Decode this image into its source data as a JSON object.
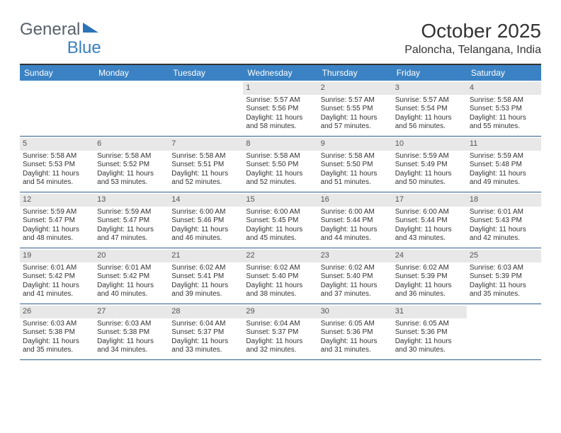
{
  "logo": {
    "part1": "General",
    "part2": "Blue"
  },
  "header": {
    "month": "October 2025",
    "location": "Paloncha, Telangana, India"
  },
  "colors": {
    "header_bar": "#3b82c4",
    "header_text": "#ffffff",
    "daynum_bg": "#e8e8e8",
    "week_border": "#2f5d8a",
    "page_border_top": "#333333",
    "logo_blue": "#3a7fbf",
    "logo_gray": "#58606a"
  },
  "typography": {
    "title_fontsize": 28,
    "location_fontsize": 16,
    "header_fontsize": 12,
    "cell_fontsize": 10
  },
  "day_names": [
    "Sunday",
    "Monday",
    "Tuesday",
    "Wednesday",
    "Thursday",
    "Friday",
    "Saturday"
  ],
  "weeks": [
    [
      {
        "empty": true
      },
      {
        "empty": true
      },
      {
        "empty": true
      },
      {
        "n": "1",
        "sr": "Sunrise: 5:57 AM",
        "ss": "Sunset: 5:56 PM",
        "d1": "Daylight: 11 hours",
        "d2": "and 58 minutes."
      },
      {
        "n": "2",
        "sr": "Sunrise: 5:57 AM",
        "ss": "Sunset: 5:55 PM",
        "d1": "Daylight: 11 hours",
        "d2": "and 57 minutes."
      },
      {
        "n": "3",
        "sr": "Sunrise: 5:57 AM",
        "ss": "Sunset: 5:54 PM",
        "d1": "Daylight: 11 hours",
        "d2": "and 56 minutes."
      },
      {
        "n": "4",
        "sr": "Sunrise: 5:58 AM",
        "ss": "Sunset: 5:53 PM",
        "d1": "Daylight: 11 hours",
        "d2": "and 55 minutes."
      }
    ],
    [
      {
        "n": "5",
        "sr": "Sunrise: 5:58 AM",
        "ss": "Sunset: 5:53 PM",
        "d1": "Daylight: 11 hours",
        "d2": "and 54 minutes."
      },
      {
        "n": "6",
        "sr": "Sunrise: 5:58 AM",
        "ss": "Sunset: 5:52 PM",
        "d1": "Daylight: 11 hours",
        "d2": "and 53 minutes."
      },
      {
        "n": "7",
        "sr": "Sunrise: 5:58 AM",
        "ss": "Sunset: 5:51 PM",
        "d1": "Daylight: 11 hours",
        "d2": "and 52 minutes."
      },
      {
        "n": "8",
        "sr": "Sunrise: 5:58 AM",
        "ss": "Sunset: 5:50 PM",
        "d1": "Daylight: 11 hours",
        "d2": "and 52 minutes."
      },
      {
        "n": "9",
        "sr": "Sunrise: 5:58 AM",
        "ss": "Sunset: 5:50 PM",
        "d1": "Daylight: 11 hours",
        "d2": "and 51 minutes."
      },
      {
        "n": "10",
        "sr": "Sunrise: 5:59 AM",
        "ss": "Sunset: 5:49 PM",
        "d1": "Daylight: 11 hours",
        "d2": "and 50 minutes."
      },
      {
        "n": "11",
        "sr": "Sunrise: 5:59 AM",
        "ss": "Sunset: 5:48 PM",
        "d1": "Daylight: 11 hours",
        "d2": "and 49 minutes."
      }
    ],
    [
      {
        "n": "12",
        "sr": "Sunrise: 5:59 AM",
        "ss": "Sunset: 5:47 PM",
        "d1": "Daylight: 11 hours",
        "d2": "and 48 minutes."
      },
      {
        "n": "13",
        "sr": "Sunrise: 5:59 AM",
        "ss": "Sunset: 5:47 PM",
        "d1": "Daylight: 11 hours",
        "d2": "and 47 minutes."
      },
      {
        "n": "14",
        "sr": "Sunrise: 6:00 AM",
        "ss": "Sunset: 5:46 PM",
        "d1": "Daylight: 11 hours",
        "d2": "and 46 minutes."
      },
      {
        "n": "15",
        "sr": "Sunrise: 6:00 AM",
        "ss": "Sunset: 5:45 PM",
        "d1": "Daylight: 11 hours",
        "d2": "and 45 minutes."
      },
      {
        "n": "16",
        "sr": "Sunrise: 6:00 AM",
        "ss": "Sunset: 5:44 PM",
        "d1": "Daylight: 11 hours",
        "d2": "and 44 minutes."
      },
      {
        "n": "17",
        "sr": "Sunrise: 6:00 AM",
        "ss": "Sunset: 5:44 PM",
        "d1": "Daylight: 11 hours",
        "d2": "and 43 minutes."
      },
      {
        "n": "18",
        "sr": "Sunrise: 6:01 AM",
        "ss": "Sunset: 5:43 PM",
        "d1": "Daylight: 11 hours",
        "d2": "and 42 minutes."
      }
    ],
    [
      {
        "n": "19",
        "sr": "Sunrise: 6:01 AM",
        "ss": "Sunset: 5:42 PM",
        "d1": "Daylight: 11 hours",
        "d2": "and 41 minutes."
      },
      {
        "n": "20",
        "sr": "Sunrise: 6:01 AM",
        "ss": "Sunset: 5:42 PM",
        "d1": "Daylight: 11 hours",
        "d2": "and 40 minutes."
      },
      {
        "n": "21",
        "sr": "Sunrise: 6:02 AM",
        "ss": "Sunset: 5:41 PM",
        "d1": "Daylight: 11 hours",
        "d2": "and 39 minutes."
      },
      {
        "n": "22",
        "sr": "Sunrise: 6:02 AM",
        "ss": "Sunset: 5:40 PM",
        "d1": "Daylight: 11 hours",
        "d2": "and 38 minutes."
      },
      {
        "n": "23",
        "sr": "Sunrise: 6:02 AM",
        "ss": "Sunset: 5:40 PM",
        "d1": "Daylight: 11 hours",
        "d2": "and 37 minutes."
      },
      {
        "n": "24",
        "sr": "Sunrise: 6:02 AM",
        "ss": "Sunset: 5:39 PM",
        "d1": "Daylight: 11 hours",
        "d2": "and 36 minutes."
      },
      {
        "n": "25",
        "sr": "Sunrise: 6:03 AM",
        "ss": "Sunset: 5:39 PM",
        "d1": "Daylight: 11 hours",
        "d2": "and 35 minutes."
      }
    ],
    [
      {
        "n": "26",
        "sr": "Sunrise: 6:03 AM",
        "ss": "Sunset: 5:38 PM",
        "d1": "Daylight: 11 hours",
        "d2": "and 35 minutes."
      },
      {
        "n": "27",
        "sr": "Sunrise: 6:03 AM",
        "ss": "Sunset: 5:38 PM",
        "d1": "Daylight: 11 hours",
        "d2": "and 34 minutes."
      },
      {
        "n": "28",
        "sr": "Sunrise: 6:04 AM",
        "ss": "Sunset: 5:37 PM",
        "d1": "Daylight: 11 hours",
        "d2": "and 33 minutes."
      },
      {
        "n": "29",
        "sr": "Sunrise: 6:04 AM",
        "ss": "Sunset: 5:37 PM",
        "d1": "Daylight: 11 hours",
        "d2": "and 32 minutes."
      },
      {
        "n": "30",
        "sr": "Sunrise: 6:05 AM",
        "ss": "Sunset: 5:36 PM",
        "d1": "Daylight: 11 hours",
        "d2": "and 31 minutes."
      },
      {
        "n": "31",
        "sr": "Sunrise: 6:05 AM",
        "ss": "Sunset: 5:36 PM",
        "d1": "Daylight: 11 hours",
        "d2": "and 30 minutes."
      },
      {
        "empty": true
      }
    ]
  ]
}
